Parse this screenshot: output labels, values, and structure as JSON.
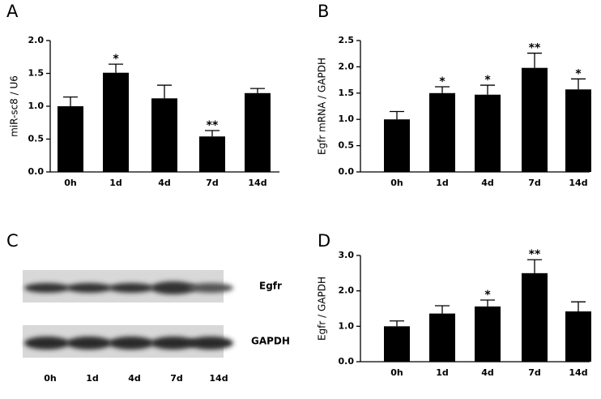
{
  "chart_data": [
    {
      "type": "bar",
      "panel": "A",
      "ylabel": "miR-sc8 / U6",
      "categories": [
        "0h",
        "1d",
        "4d",
        "7d",
        "14d"
      ],
      "values": [
        1.0,
        1.51,
        1.12,
        0.54,
        1.2
      ],
      "errors": [
        0.14,
        0.13,
        0.2,
        0.09,
        0.07
      ],
      "significance": [
        null,
        "*",
        null,
        "**",
        null
      ],
      "color": "#000000",
      "ylim": [
        0,
        2.0
      ],
      "yticks": [
        {
          "value": 0,
          "label": "0.0"
        },
        0.5,
        {
          "value": 1,
          "label": "1.0"
        },
        1.5,
        {
          "value": 2,
          "label": "2.0"
        }
      ]
    },
    {
      "type": "bar",
      "panel": "B",
      "ylabel": "Egfr mRNA / GAPDH",
      "categories": [
        "0h",
        "1d",
        "4d",
        "7d",
        "14d"
      ],
      "values": [
        1.0,
        1.5,
        1.47,
        1.98,
        1.57
      ],
      "errors": [
        0.15,
        0.12,
        0.18,
        0.28,
        0.2
      ],
      "significance": [
        null,
        "*",
        "*",
        "**",
        "*"
      ],
      "color": "#000000",
      "ylim": [
        0,
        2.5
      ],
      "yticks": [
        {
          "value": 0,
          "label": "0.0"
        },
        0.5,
        {
          "value": 1,
          "label": "1.0"
        },
        1.5,
        {
          "value": 2,
          "label": "2.0"
        },
        2.5
      ]
    },
    {
      "type": "blot",
      "panel": "C",
      "categories": [
        "0h",
        "1d",
        "4d",
        "7d",
        "14d"
      ],
      "bands": [
        "Egfr",
        "GAPDH"
      ]
    },
    {
      "type": "bar",
      "panel": "D",
      "ylabel": "Egfr / GAPDH",
      "categories": [
        "0h",
        "1d",
        "4d",
        "7d",
        "14d"
      ],
      "values": [
        1.0,
        1.36,
        1.56,
        2.5,
        1.42
      ],
      "errors": [
        0.15,
        0.22,
        0.18,
        0.38,
        0.27
      ],
      "significance": [
        null,
        null,
        "*",
        "**",
        null
      ],
      "color": "#000000",
      "ylim": [
        0,
        3.0
      ],
      "yticks": [
        {
          "value": 0,
          "label": "0.0"
        },
        {
          "value": 1,
          "label": "1.0"
        },
        {
          "value": 2,
          "label": "2.0"
        },
        {
          "value": 3,
          "label": "3.0"
        }
      ]
    }
  ]
}
